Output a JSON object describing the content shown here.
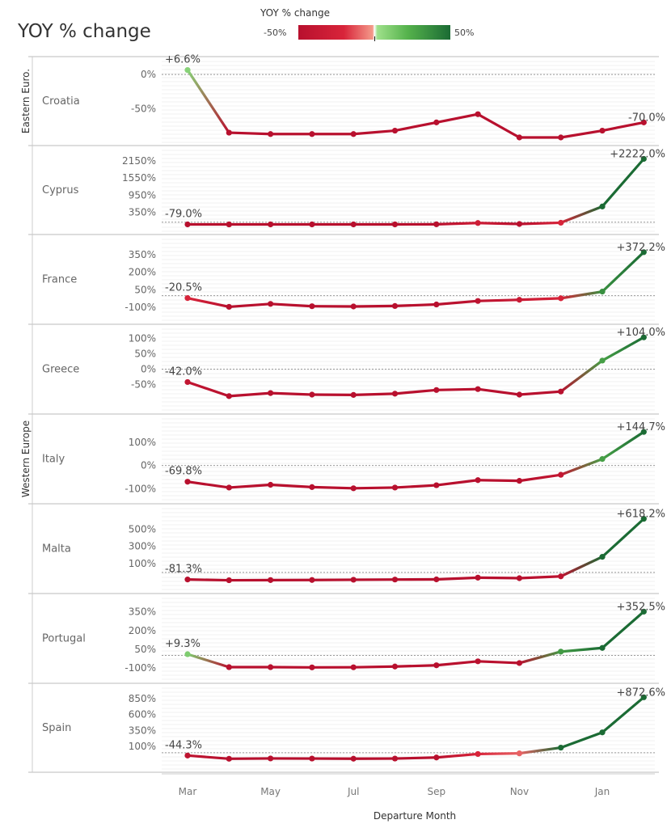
{
  "title": "YOY % change",
  "legend": {
    "title": "YOY % change",
    "min_label": "-50%",
    "max_label": "50%",
    "colors": {
      "low": "#b8102e",
      "mid": "#ffffff",
      "high": "#1b6b34"
    }
  },
  "chart_data": {
    "type": "line",
    "title": "YOY % change",
    "xlabel": "Departure Month",
    "x": [
      "Mar",
      "Apr",
      "May",
      "Jun",
      "Jul",
      "Aug",
      "Sep",
      "Oct",
      "Nov",
      "Dec",
      "Jan",
      "Feb"
    ],
    "x_tick_labels": [
      "Mar",
      "May",
      "Jul",
      "Sep",
      "Nov",
      "Jan"
    ],
    "groups": [
      {
        "name": "Eastern Euro.",
        "rows": [
          "Croatia"
        ]
      },
      {
        "name": "Western Europe",
        "rows": [
          "Cyprus",
          "France",
          "Greece",
          "Italy",
          "Malta",
          "Portugal",
          "Spain"
        ]
      }
    ],
    "panels": [
      {
        "name": "Croatia",
        "ylim": [
          -92,
          12
        ],
        "yticks": [
          "0%",
          "-50%"
        ],
        "ytick_values": [
          0,
          -50
        ],
        "values": [
          6.6,
          -85,
          -87,
          -87,
          -87,
          -82,
          -70,
          -58,
          -92,
          -92,
          -82,
          -70.0
        ],
        "start_label": "+6.6%",
        "end_label": "-70.0%"
      },
      {
        "name": "Cyprus",
        "ylim": [
          -150,
          2350
        ],
        "yticks": [
          "2150%",
          "1550%",
          "950%",
          "350%"
        ],
        "ytick_values": [
          2150,
          1550,
          950,
          350
        ],
        "values": [
          -79.0,
          -80,
          -79,
          -79,
          -79,
          -78,
          -75,
          -30,
          -65,
          -20,
          550,
          2222.0
        ],
        "start_label": "-79.0%",
        "end_label": "+2222.0%"
      },
      {
        "name": "France",
        "ylim": [
          -175,
          440
        ],
        "yticks": [
          "350%",
          "200%",
          "50%",
          "-100%"
        ],
        "ytick_values": [
          350,
          200,
          50,
          -100
        ],
        "values": [
          -20.5,
          -95,
          -70,
          -90,
          -92,
          -88,
          -75,
          -45,
          -35,
          -22,
          35,
          372.2
        ],
        "start_label": "-20.5%",
        "end_label": "+372.2%"
      },
      {
        "name": "Greece",
        "ylim": [
          -120,
          115
        ],
        "yticks": [
          "100%",
          "50%",
          "0%",
          "-50%"
        ],
        "ytick_values": [
          100,
          50,
          0,
          -50
        ],
        "values": [
          -42.0,
          -88,
          -78,
          -83,
          -84,
          -80,
          -68,
          -65,
          -83,
          -73,
          28,
          104.0
        ],
        "start_label": "-42.0%",
        "end_label": "+104.0%"
      },
      {
        "name": "Italy",
        "ylim": [
          -130,
          180
        ],
        "yticks": [
          "100%",
          "0%",
          "-100%"
        ],
        "ytick_values": [
          100,
          0,
          -100
        ],
        "values": [
          -69.8,
          -95,
          -83,
          -93,
          -98,
          -95,
          -85,
          -63,
          -66,
          -40,
          28,
          144.7
        ],
        "start_label": "-69.8%",
        "end_label": "+144.7%"
      },
      {
        "name": "Malta",
        "ylim": [
          -150,
          680
        ],
        "yticks": [
          "500%",
          "300%",
          "100%"
        ],
        "ytick_values": [
          500,
          300,
          100
        ],
        "values": [
          -81.3,
          -90,
          -88,
          -87,
          -84,
          -82,
          -80,
          -60,
          -66,
          -45,
          180,
          618.2
        ],
        "start_label": "-81.3%",
        "end_label": "+618.2%"
      },
      {
        "name": "Portugal",
        "ylim": [
          -160,
          420
        ],
        "yticks": [
          "350%",
          "200%",
          "50%",
          "-100%"
        ],
        "ytick_values": [
          350,
          200,
          50,
          -100
        ],
        "values": [
          9.3,
          -95,
          -95,
          -97,
          -96,
          -90,
          -80,
          -48,
          -62,
          30,
          60,
          352.5
        ],
        "start_label": "+9.3%",
        "end_label": "+352.5%"
      },
      {
        "name": "Spain",
        "ylim": [
          -180,
          940
        ],
        "yticks": [
          "850%",
          "600%",
          "350%",
          "100%"
        ],
        "ytick_values": [
          850,
          600,
          350,
          100
        ],
        "values": [
          -44.3,
          -95,
          -90,
          -92,
          -94,
          -92,
          -75,
          -20,
          -10,
          80,
          320,
          872.6
        ],
        "start_label": "-44.3%",
        "end_label": "+872.6%"
      }
    ]
  }
}
